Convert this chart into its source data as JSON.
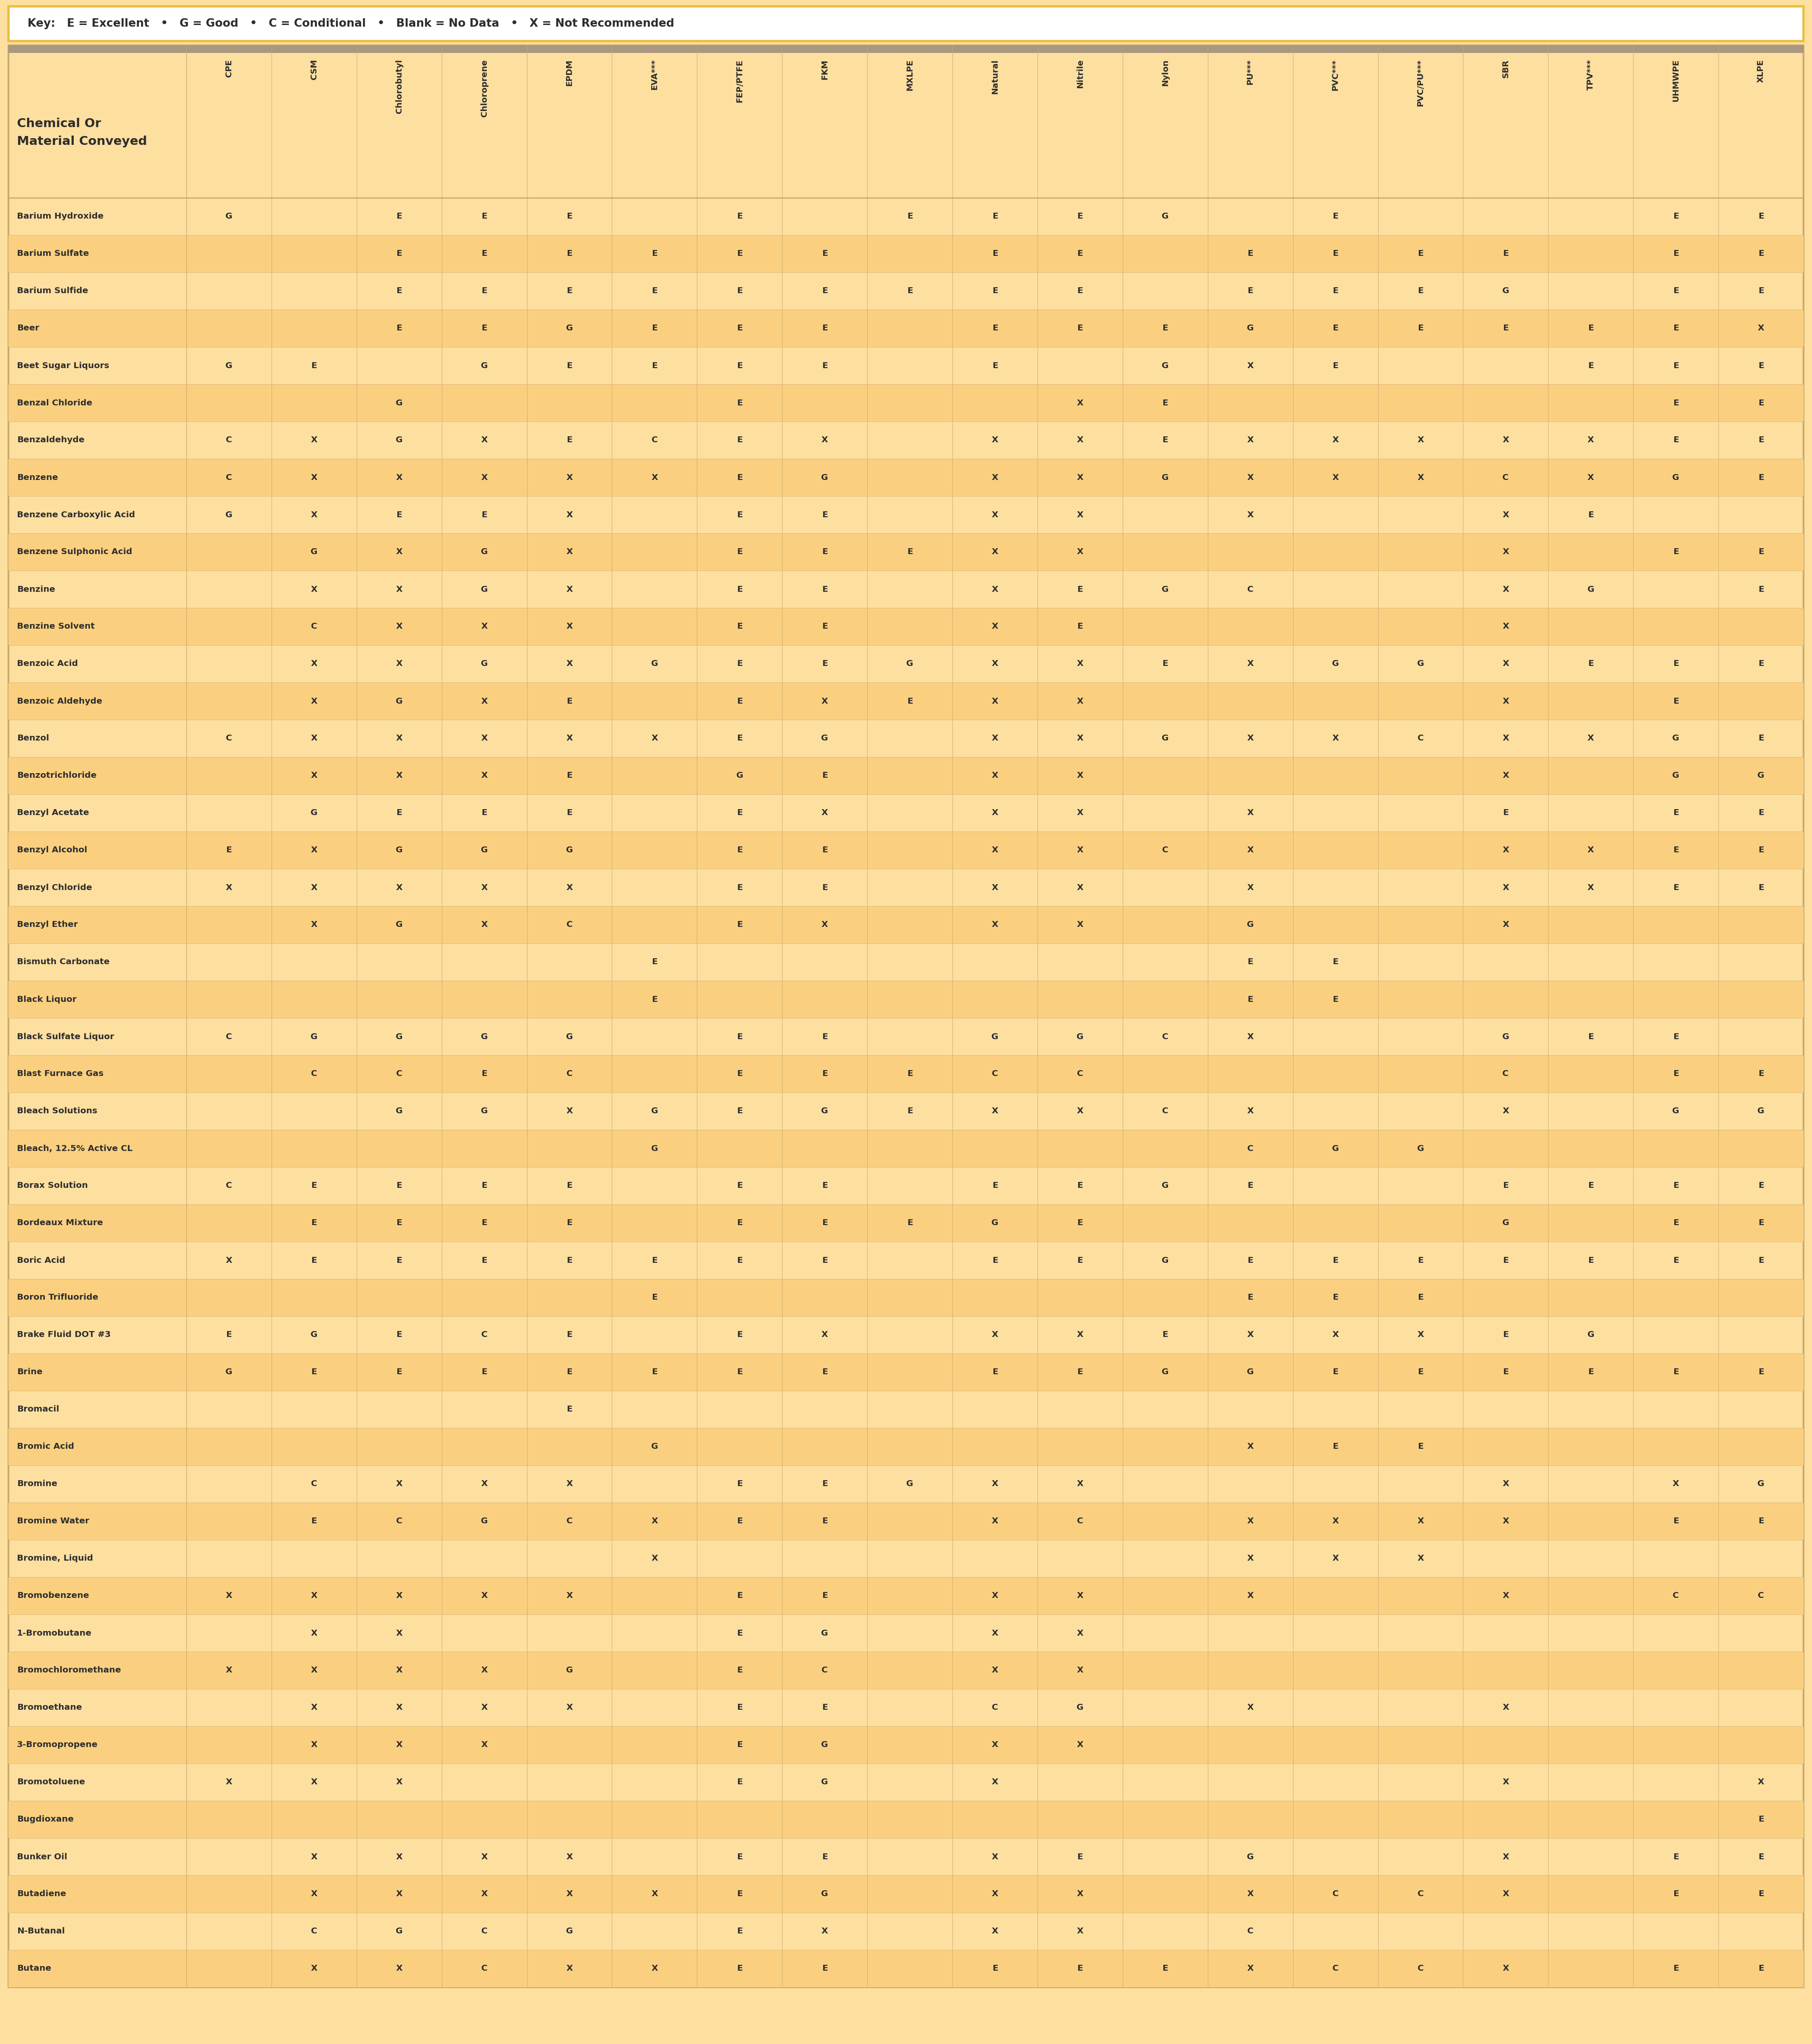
{
  "key_text": "Key:   E = Excellent   •   G = Good   •   C = Conditional   •   Blank = No Data   •   X = Not Recommended",
  "header_col": "Chemical Or\nMaterial Conveyed",
  "columns": [
    "CPE",
    "CSM",
    "Chlorobutyl",
    "Chloroprene",
    "EPDM",
    "EVA***",
    "FEP/PTFE",
    "FKM",
    "MXLPE",
    "Natural",
    "Nitrile",
    "Nylon",
    "PU***",
    "PVC***",
    "PVC/PU***",
    "SBR",
    "TPV***",
    "UHMWPE",
    "XLPE"
  ],
  "rows": [
    [
      "Barium Hydroxide",
      "G",
      "",
      "E",
      "E",
      "E",
      "",
      "E",
      "",
      "E",
      "E",
      "E",
      "G",
      "",
      "E",
      "",
      "",
      "",
      "E",
      "E"
    ],
    [
      "Barium Sulfate",
      "",
      "",
      "E",
      "E",
      "E",
      "E",
      "E",
      "E",
      "",
      "E",
      "E",
      "",
      "E",
      "E",
      "E",
      "E",
      "",
      "E",
      "E"
    ],
    [
      "Barium Sulfide",
      "",
      "",
      "E",
      "E",
      "E",
      "E",
      "E",
      "E",
      "E",
      "E",
      "E",
      "",
      "E",
      "E",
      "E",
      "G",
      "",
      "E",
      "E"
    ],
    [
      "Beer",
      "",
      "",
      "E",
      "E",
      "G",
      "E",
      "E",
      "E",
      "",
      "E",
      "E",
      "E",
      "G",
      "E",
      "E",
      "E",
      "E",
      "E",
      "X"
    ],
    [
      "Beet Sugar Liquors",
      "G",
      "E",
      "",
      "G",
      "E",
      "E",
      "E",
      "E",
      "",
      "E",
      "",
      "G",
      "X",
      "E",
      "",
      "",
      "E",
      "E",
      "E"
    ],
    [
      "Benzal Chloride",
      "",
      "",
      "G",
      "",
      "",
      "",
      "E",
      "",
      "",
      "",
      "X",
      "E",
      "",
      "",
      "",
      "",
      "",
      "E",
      "E"
    ],
    [
      "Benzaldehyde",
      "C",
      "X",
      "G",
      "X",
      "E",
      "C",
      "E",
      "X",
      "",
      "X",
      "X",
      "E",
      "X",
      "X",
      "X",
      "X",
      "X",
      "E",
      "E"
    ],
    [
      "Benzene",
      "C",
      "X",
      "X",
      "X",
      "X",
      "X",
      "E",
      "G",
      "",
      "X",
      "X",
      "G",
      "X",
      "X",
      "X",
      "C",
      "X",
      "G",
      "E"
    ],
    [
      "Benzene Carboxylic Acid",
      "G",
      "X",
      "E",
      "E",
      "X",
      "",
      "E",
      "E",
      "",
      "X",
      "X",
      "",
      "X",
      "",
      "",
      "X",
      "E",
      "",
      ""
    ],
    [
      "Benzene Sulphonic Acid",
      "",
      "G",
      "X",
      "G",
      "X",
      "",
      "E",
      "E",
      "E",
      "X",
      "X",
      "",
      "",
      "",
      "",
      "X",
      "",
      "E",
      "E"
    ],
    [
      "Benzine",
      "",
      "X",
      "X",
      "G",
      "X",
      "",
      "E",
      "E",
      "",
      "X",
      "E",
      "G",
      "C",
      "",
      "",
      "X",
      "G",
      "",
      "E"
    ],
    [
      "Benzine Solvent",
      "",
      "C",
      "X",
      "X",
      "X",
      "",
      "E",
      "E",
      "",
      "X",
      "E",
      "",
      "",
      "",
      "",
      "X",
      "",
      "",
      ""
    ],
    [
      "Benzoic Acid",
      "",
      "X",
      "X",
      "G",
      "X",
      "G",
      "E",
      "E",
      "G",
      "X",
      "X",
      "E",
      "X",
      "G",
      "G",
      "X",
      "E",
      "E",
      "E"
    ],
    [
      "Benzoic Aldehyde",
      "",
      "X",
      "G",
      "X",
      "E",
      "",
      "E",
      "X",
      "E",
      "X",
      "X",
      "",
      "",
      "",
      "",
      "X",
      "",
      "E",
      ""
    ],
    [
      "Benzol",
      "C",
      "X",
      "X",
      "X",
      "X",
      "X",
      "E",
      "G",
      "",
      "X",
      "X",
      "G",
      "X",
      "X",
      "C",
      "X",
      "X",
      "G",
      "E"
    ],
    [
      "Benzotrichloride",
      "",
      "X",
      "X",
      "X",
      "E",
      "",
      "G",
      "E",
      "",
      "X",
      "X",
      "",
      "",
      "",
      "",
      "X",
      "",
      "G",
      "G"
    ],
    [
      "Benzyl Acetate",
      "",
      "G",
      "E",
      "E",
      "E",
      "",
      "E",
      "X",
      "",
      "X",
      "X",
      "",
      "X",
      "",
      "",
      "E",
      "",
      "E",
      "E"
    ],
    [
      "Benzyl Alcohol",
      "E",
      "X",
      "G",
      "G",
      "G",
      "",
      "E",
      "E",
      "",
      "X",
      "X",
      "C",
      "X",
      "",
      "",
      "X",
      "X",
      "E",
      "E"
    ],
    [
      "Benzyl Chloride",
      "X",
      "X",
      "X",
      "X",
      "X",
      "",
      "E",
      "E",
      "",
      "X",
      "X",
      "",
      "X",
      "",
      "",
      "X",
      "X",
      "E",
      "E"
    ],
    [
      "Benzyl Ether",
      "",
      "X",
      "G",
      "X",
      "C",
      "",
      "E",
      "X",
      "",
      "X",
      "X",
      "",
      "G",
      "",
      "",
      "X",
      "",
      "",
      ""
    ],
    [
      "Bismuth Carbonate",
      "",
      "",
      "",
      "",
      "",
      "E",
      "",
      "",
      "",
      "",
      "",
      "",
      "E",
      "E",
      "",
      "",
      "",
      "",
      ""
    ],
    [
      "Black Liquor",
      "",
      "",
      "",
      "",
      "",
      "E",
      "",
      "",
      "",
      "",
      "",
      "",
      "E",
      "E",
      "",
      "",
      "",
      "",
      ""
    ],
    [
      "Black Sulfate Liquor",
      "C",
      "G",
      "G",
      "G",
      "G",
      "",
      "E",
      "E",
      "",
      "G",
      "G",
      "C",
      "X",
      "",
      "",
      "G",
      "E",
      "E",
      ""
    ],
    [
      "Blast Furnace Gas",
      "",
      "C",
      "C",
      "E",
      "C",
      "",
      "E",
      "E",
      "E",
      "C",
      "C",
      "",
      "",
      "",
      "",
      "C",
      "",
      "E",
      "E"
    ],
    [
      "Bleach Solutions",
      "",
      "",
      "G",
      "G",
      "X",
      "G",
      "E",
      "G",
      "E",
      "X",
      "X",
      "C",
      "X",
      "",
      "",
      "X",
      "",
      "G",
      "G"
    ],
    [
      "Bleach, 12.5% Active CL",
      "",
      "",
      "",
      "",
      "",
      "G",
      "",
      "",
      "",
      "",
      "",
      "",
      "C",
      "G",
      "G",
      "",
      "",
      "",
      ""
    ],
    [
      "Borax Solution",
      "C",
      "E",
      "E",
      "E",
      "E",
      "",
      "E",
      "E",
      "",
      "E",
      "E",
      "G",
      "E",
      "",
      "",
      "E",
      "E",
      "E",
      "E"
    ],
    [
      "Bordeaux Mixture",
      "",
      "E",
      "E",
      "E",
      "E",
      "",
      "E",
      "E",
      "E",
      "G",
      "E",
      "",
      "",
      "",
      "",
      "G",
      "",
      "E",
      "E"
    ],
    [
      "Boric Acid",
      "X",
      "E",
      "E",
      "E",
      "E",
      "E",
      "E",
      "E",
      "",
      "E",
      "E",
      "G",
      "E",
      "E",
      "E",
      "E",
      "E",
      "E",
      "E"
    ],
    [
      "Boron Trifluoride",
      "",
      "",
      "",
      "",
      "",
      "E",
      "",
      "",
      "",
      "",
      "",
      "",
      "E",
      "E",
      "E",
      "",
      "",
      "",
      ""
    ],
    [
      "Brake Fluid DOT #3",
      "E",
      "G",
      "E",
      "C",
      "E",
      "",
      "E",
      "X",
      "",
      "X",
      "X",
      "E",
      "X",
      "X",
      "X",
      "E",
      "G",
      "",
      ""
    ],
    [
      "Brine",
      "G",
      "E",
      "E",
      "E",
      "E",
      "E",
      "E",
      "E",
      "",
      "E",
      "E",
      "G",
      "G",
      "E",
      "E",
      "E",
      "E",
      "E",
      "E"
    ],
    [
      "Bromacil",
      "",
      "",
      "",
      "",
      "E",
      "",
      "",
      "",
      "",
      "",
      "",
      "",
      "",
      "",
      "",
      "",
      "",
      "",
      ""
    ],
    [
      "Bromic Acid",
      "",
      "",
      "",
      "",
      "",
      "G",
      "",
      "",
      "",
      "",
      "",
      "",
      "X",
      "E",
      "E",
      "",
      "",
      "",
      ""
    ],
    [
      "Bromine",
      "",
      "C",
      "X",
      "X",
      "X",
      "",
      "E",
      "E",
      "G",
      "X",
      "X",
      "",
      "",
      "",
      "",
      "X",
      "",
      "X",
      "G"
    ],
    [
      "Bromine Water",
      "",
      "E",
      "C",
      "G",
      "C",
      "X",
      "E",
      "E",
      "",
      "X",
      "C",
      "",
      "X",
      "X",
      "X",
      "X",
      "",
      "E",
      "E"
    ],
    [
      "Bromine, Liquid",
      "",
      "",
      "",
      "",
      "",
      "X",
      "",
      "",
      "",
      "",
      "",
      "",
      "X",
      "X",
      "X",
      "",
      "",
      "",
      ""
    ],
    [
      "Bromobenzene",
      "X",
      "X",
      "X",
      "X",
      "X",
      "",
      "E",
      "E",
      "",
      "X",
      "X",
      "",
      "X",
      "",
      "",
      "X",
      "",
      "C",
      "C"
    ],
    [
      "1-Bromobutane",
      "",
      "X",
      "X",
      "",
      "",
      "",
      "E",
      "G",
      "",
      "X",
      "X",
      "",
      "",
      "",
      "",
      "",
      "",
      "",
      ""
    ],
    [
      "Bromochloromethane",
      "X",
      "X",
      "X",
      "X",
      "G",
      "",
      "E",
      "C",
      "",
      "X",
      "X",
      "",
      "",
      "",
      "",
      "",
      "",
      "",
      ""
    ],
    [
      "Bromoethane",
      "",
      "X",
      "X",
      "X",
      "X",
      "",
      "E",
      "E",
      "",
      "C",
      "G",
      "",
      "X",
      "",
      "",
      "X",
      "",
      "",
      ""
    ],
    [
      "3-Bromopropene",
      "",
      "X",
      "X",
      "X",
      "",
      "",
      "E",
      "G",
      "",
      "X",
      "X",
      "",
      "",
      "",
      "",
      "",
      "",
      "",
      ""
    ],
    [
      "Bromotoluene",
      "X",
      "X",
      "X",
      "",
      "",
      "",
      "E",
      "G",
      "",
      "X",
      "",
      "",
      "",
      "",
      "",
      "X",
      "",
      "",
      "X"
    ],
    [
      "Bugdioxane",
      "",
      "",
      "",
      "",
      "",
      "",
      "",
      "",
      "",
      "",
      "",
      "",
      "",
      "",
      "",
      "",
      "",
      "",
      "E"
    ],
    [
      "Bunker Oil",
      "",
      "X",
      "X",
      "X",
      "X",
      "",
      "E",
      "E",
      "",
      "X",
      "E",
      "",
      "G",
      "",
      "",
      "X",
      "",
      "E",
      "E"
    ],
    [
      "Butadiene",
      "",
      "X",
      "X",
      "X",
      "X",
      "X",
      "E",
      "G",
      "",
      "X",
      "X",
      "",
      "X",
      "C",
      "C",
      "X",
      "",
      "E",
      "E"
    ],
    [
      "N-Butanal",
      "",
      "C",
      "G",
      "C",
      "G",
      "",
      "E",
      "X",
      "",
      "X",
      "X",
      "",
      "C",
      "",
      "",
      "",
      "",
      "",
      ""
    ],
    [
      "Butane",
      "",
      "X",
      "X",
      "C",
      "X",
      "X",
      "E",
      "E",
      "",
      "E",
      "E",
      "E",
      "X",
      "C",
      "C",
      "X",
      "",
      "E",
      "E"
    ]
  ],
  "bg_color_light": "#FDDFA0",
  "bg_color_alt": "#FAD080",
  "bg_color_header_bar": "#A89880",
  "border_color": "#C8AA6E",
  "text_color": "#2D2D2D",
  "key_border_color": "#E8C040",
  "key_bg": "#FFFFFF",
  "fig_bg": "#FDDFA0"
}
